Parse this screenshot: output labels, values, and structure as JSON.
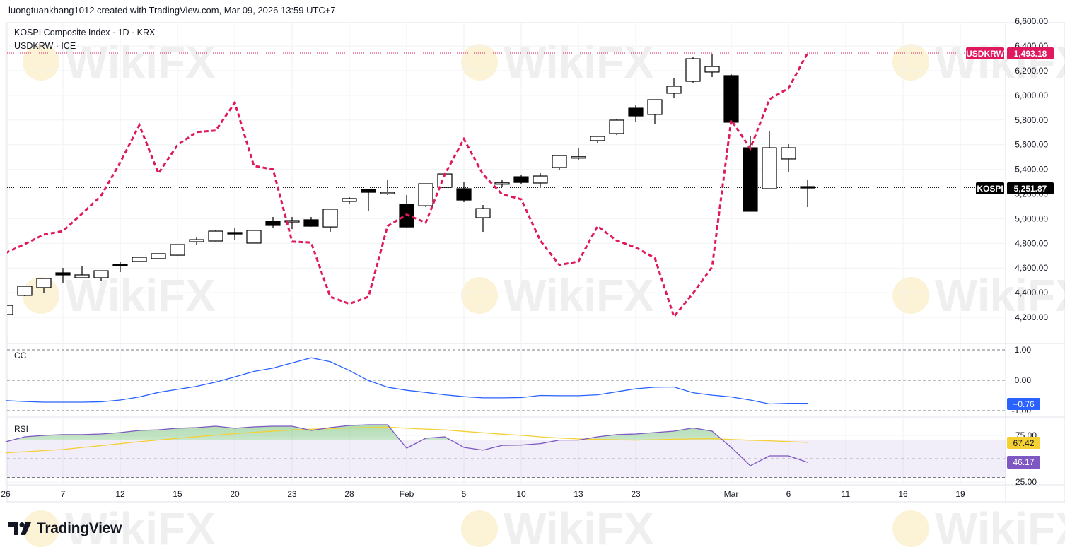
{
  "credit": "luongtuankhang1012 created with TradingView.com, Mar 09, 2026 13:59 UTC+7",
  "legend": {
    "main_symbol": "KOSPI Composite Index · 1D · KRX",
    "compare_symbol": "USDKRW · ICE"
  },
  "watermark": "WikiFX",
  "logo": {
    "text": "TradingView",
    "icon": "tradingview-logo-icon"
  },
  "colors": {
    "usdkrw": "#e0195f",
    "cc": "#2962ff",
    "rsi": "#7e57c2",
    "rsi_ma": "#f5d033",
    "candle_up": "#ffffff",
    "candle_down": "#000000"
  },
  "badges": {
    "usdkrw_label": "USDKRW",
    "usdkrw_value": "1,493.18",
    "kospi_label": "KOSPI",
    "kospi_value": "5,251.87",
    "cc_value": "−0.76",
    "rsi_ma_value": "67.42",
    "rsi_value": "46.17"
  },
  "panes": {
    "cc_title": "CC",
    "rsi_title": "RSI"
  },
  "chart_data": {
    "type": "candlestick",
    "price_axis": {
      "labels": [
        "6,600.00",
        "6,400.00",
        "6,200.00",
        "6,000.00",
        "5,800.00",
        "5,600.00",
        "5,400.00",
        "5,200.00",
        "5,000.00",
        "4,800.00",
        "4,600.00",
        "4,400.00",
        "4,200.00"
      ],
      "values": [
        6600,
        6400,
        6200,
        6000,
        5800,
        5600,
        5400,
        5200,
        5000,
        4800,
        4600,
        4400,
        4200
      ]
    },
    "cc_axis": {
      "labels": [
        "1.00",
        "0.00",
        "-1.00"
      ],
      "values": [
        1,
        0,
        -1
      ]
    },
    "rsi_axis": {
      "labels": [
        "75.00",
        "25.00"
      ],
      "values": [
        75,
        25
      ],
      "bands": [
        70,
        50,
        30
      ]
    },
    "time_ticks": [
      {
        "label": "26",
        "index": 0
      },
      {
        "label": "7",
        "index": 3
      },
      {
        "label": "12",
        "index": 6
      },
      {
        "label": "15",
        "index": 9
      },
      {
        "label": "20",
        "index": 12
      },
      {
        "label": "23",
        "index": 15
      },
      {
        "label": "28",
        "index": 18
      },
      {
        "label": "Feb",
        "index": 21
      },
      {
        "label": "5",
        "index": 24
      },
      {
        "label": "10",
        "index": 27
      },
      {
        "label": "13",
        "index": 30
      },
      {
        "label": "23",
        "index": 33
      },
      {
        "label": "Mar",
        "index": 38
      },
      {
        "label": "6",
        "index": 41
      },
      {
        "label": "11",
        "index": 44
      },
      {
        "label": "16",
        "index": 47
      },
      {
        "label": "19",
        "index": 50
      }
    ],
    "kospi_ohlc": [
      [
        4223,
        4300,
        4215,
        4297
      ],
      [
        4378,
        4455,
        4372,
        4452
      ],
      [
        4441,
        4520,
        4395,
        4515
      ],
      [
        4561,
        4601,
        4481,
        4544
      ],
      [
        4521,
        4613,
        4515,
        4544
      ],
      [
        4521,
        4580,
        4498,
        4578
      ],
      [
        4630,
        4647,
        4567,
        4624
      ],
      [
        4653,
        4690,
        4650,
        4687
      ],
      [
        4676,
        4718,
        4670,
        4716
      ],
      [
        4704,
        4793,
        4700,
        4790
      ],
      [
        4813,
        4848,
        4790,
        4830
      ],
      [
        4819,
        4905,
        4815,
        4899
      ],
      [
        4888,
        4928,
        4825,
        4876
      ],
      [
        4802,
        4905,
        4800,
        4905
      ],
      [
        4979,
        5014,
        4928,
        4945
      ],
      [
        4974,
        5014,
        4916,
        4985
      ],
      [
        4991,
        5014,
        4935,
        4939
      ],
      [
        4933,
        5077,
        4893,
        5077
      ],
      [
        5140,
        5174,
        5117,
        5163
      ],
      [
        5237,
        5243,
        5065,
        5214
      ],
      [
        5203,
        5312,
        5191,
        5214
      ],
      [
        5117,
        5191,
        4928,
        4933
      ],
      [
        5105,
        5283,
        5094,
        5283
      ],
      [
        5254,
        5369,
        5250,
        5363
      ],
      [
        5243,
        5294,
        5134,
        5151
      ],
      [
        5008,
        5111,
        4893,
        5082
      ],
      [
        5289,
        5317,
        5260,
        5290
      ],
      [
        5340,
        5358,
        5277,
        5294
      ],
      [
        5289,
        5369,
        5249,
        5346
      ],
      [
        5415,
        5512,
        5392,
        5512
      ],
      [
        5501,
        5570,
        5472,
        5502
      ],
      [
        5633,
        5673,
        5610,
        5667
      ],
      [
        5690,
        5805,
        5678,
        5799
      ],
      [
        5896,
        5925,
        5787,
        5833
      ],
      [
        5845,
        5965,
        5770,
        5965
      ],
      [
        6017,
        6137,
        5976,
        6074
      ],
      [
        6114,
        6309,
        6103,
        6297
      ],
      [
        6189,
        6338,
        6148,
        6234
      ],
      [
        6160,
        6171,
        5782,
        5782
      ],
      [
        5575,
        5667,
        5060,
        5060
      ],
      [
        5243,
        5707,
        5240,
        5575
      ],
      [
        5484,
        5604,
        5375,
        5575
      ],
      [
        5260,
        5317,
        5094,
        5251.87
      ]
    ],
    "usdkrw_close": [
      1453.0,
      1454.8,
      1456.7,
      1457.4,
      1460.9,
      1464.5,
      1471.2,
      1478.7,
      1469.0,
      1474.7,
      1477.3,
      1477.6,
      1483.2,
      1470.5,
      1469.8,
      1455.3,
      1455.1,
      1444.2,
      1442.8,
      1444.2,
      1458.4,
      1460.7,
      1459.1,
      1468.8,
      1475.9,
      1468.8,
      1464.8,
      1463.8,
      1455.5,
      1450.6,
      1451.3,
      1458.4,
      1455.5,
      1454.1,
      1452.0,
      1440.2,
      1444.9,
      1450.2,
      1479.7,
      1474.0,
      1483.9,
      1486.1,
      1493.18
    ],
    "cc": [
      -0.67,
      -0.7,
      -0.72,
      -0.72,
      -0.72,
      -0.71,
      -0.65,
      -0.55,
      -0.4,
      -0.3,
      -0.2,
      -0.06,
      0.11,
      0.29,
      0.4,
      0.57,
      0.74,
      0.61,
      0.32,
      -0.01,
      -0.23,
      -0.33,
      -0.4,
      -0.48,
      -0.54,
      -0.58,
      -0.58,
      -0.57,
      -0.5,
      -0.51,
      -0.51,
      -0.48,
      -0.38,
      -0.28,
      -0.23,
      -0.22,
      -0.41,
      -0.49,
      -0.55,
      -0.65,
      -0.78,
      -0.76,
      -0.76
    ],
    "rsi": [
      68.1,
      73.4,
      74.9,
      75.7,
      75.7,
      76.4,
      77.9,
      80.2,
      80.9,
      82.5,
      83.2,
      84.7,
      82.5,
      84.0,
      84.7,
      84.7,
      80.2,
      83.2,
      85.5,
      86.2,
      86.2,
      61.3,
      71.9,
      73.4,
      62.1,
      59.1,
      64.3,
      64.6,
      66.1,
      69.9,
      69.9,
      73.4,
      75.7,
      76.4,
      77.9,
      79.4,
      82.8,
      79.4,
      62.1,
      42.5,
      53.0,
      53.0,
      46.17
    ],
    "rsi_ma": [
      56.3,
      57.5,
      58.7,
      59.8,
      62.0,
      64.0,
      66.1,
      68.2,
      70.0,
      71.8,
      73.5,
      75.2,
      76.9,
      78.2,
      79.4,
      80.7,
      81.5,
      82.2,
      82.8,
      83.3,
      83.7,
      82.5,
      81.6,
      80.8,
      79.2,
      77.7,
      76.2,
      75.0,
      73.3,
      72.2,
      71.1,
      70.6,
      70.2,
      69.9,
      70.3,
      70.8,
      71.2,
      71.4,
      70.5,
      69.8,
      69.2,
      68.3,
      67.42
    ]
  }
}
